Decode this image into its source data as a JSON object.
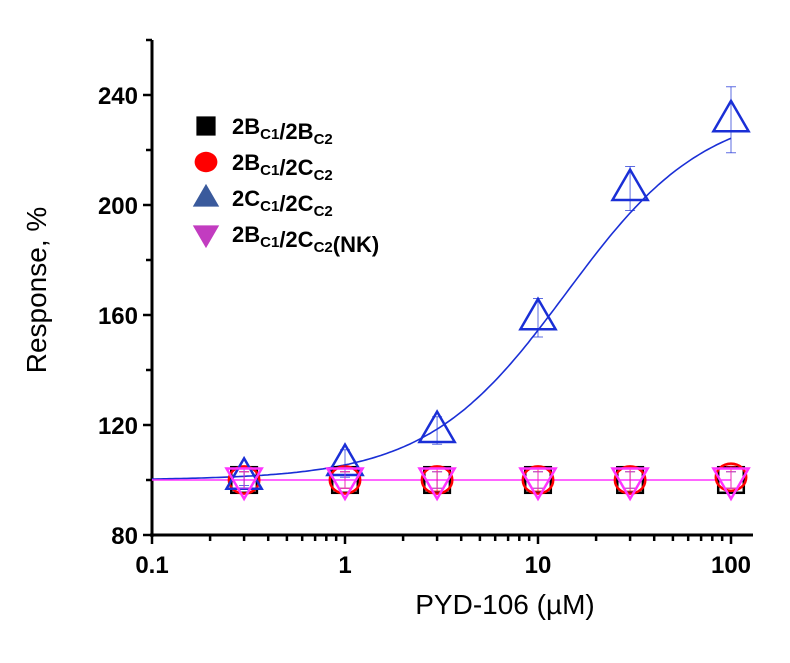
{
  "chart_data": {
    "type": "scatter",
    "title": "",
    "xlabel": "PYD-106 (µM)",
    "ylabel": "Response, %",
    "xscale": "log",
    "xlim": [
      0.1,
      130
    ],
    "ylim": [
      80,
      260
    ],
    "x_ticks": [
      0.1,
      1,
      10,
      100
    ],
    "x_tick_labels": [
      "0.1",
      "1",
      "10",
      "100"
    ],
    "y_ticks": [
      80,
      120,
      160,
      200,
      240
    ],
    "y_tick_labels": [
      "80",
      "120",
      "160",
      "200",
      "240"
    ],
    "grid": false,
    "legend_position": "top-left",
    "x": [
      0.3,
      1,
      3,
      10,
      30,
      100
    ],
    "series": [
      {
        "name": "2BC1/2BC2",
        "label_parts": [
          [
            "2B",
            ""
          ],
          [
            "C1",
            "sub"
          ],
          [
            "/2B",
            ""
          ],
          [
            "C2",
            "sub"
          ]
        ],
        "marker": "square",
        "color": "#000000",
        "values": [
          100,
          100,
          100,
          100,
          100,
          100
        ],
        "errors": [
          3,
          3,
          3,
          3,
          3,
          3
        ]
      },
      {
        "name": "2BC1/2CC2",
        "label_parts": [
          [
            "2B",
            ""
          ],
          [
            "C1",
            "sub"
          ],
          [
            "/2C",
            ""
          ],
          [
            "C2",
            "sub"
          ]
        ],
        "marker": "circle",
        "color": "#ff0000",
        "values": [
          100,
          100,
          100,
          100,
          100,
          101
        ],
        "errors": [
          3,
          3,
          4,
          4,
          4,
          4
        ]
      },
      {
        "name": "2CC1/2CC2",
        "label_parts": [
          [
            "2C",
            ""
          ],
          [
            "C1",
            "sub"
          ],
          [
            "/2C",
            ""
          ],
          [
            "C2",
            "sub"
          ]
        ],
        "marker": "triangle-up",
        "color": "#1a2fd6",
        "legend_color": "#3a5a9c",
        "values": [
          101,
          106,
          118,
          159,
          206,
          231
        ],
        "errors": [
          3,
          5,
          5,
          7,
          8,
          12
        ],
        "fit": {
          "type": "sigmoid",
          "bottom": 100,
          "top": 236,
          "ec50": 14,
          "hill": 1.2
        }
      },
      {
        "name": "2BC1/2CC2(NK)",
        "label_parts": [
          [
            "2B",
            ""
          ],
          [
            "C1",
            "sub"
          ],
          [
            "/2C",
            ""
          ],
          [
            "C2",
            "sub"
          ],
          [
            "(NK)",
            ""
          ]
        ],
        "marker": "triangle-down",
        "color": "#ff33ff",
        "legend_color": "#c23cc0",
        "values": [
          100,
          100,
          100,
          100,
          100,
          100
        ],
        "errors": [
          3,
          3,
          3,
          3,
          3,
          3
        ],
        "fit": {
          "type": "flat",
          "value": 100
        }
      }
    ]
  }
}
